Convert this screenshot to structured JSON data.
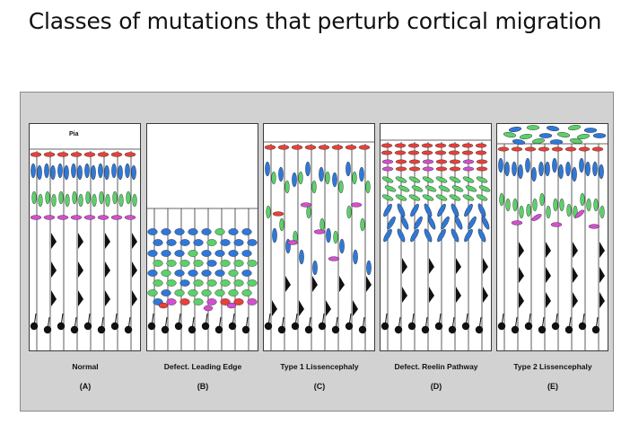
{
  "title": "Classes of mutations that perturb cortical migration",
  "pia_label": "Pia",
  "colors": {
    "red": "#e8403a",
    "blue": "#2f78d8",
    "green": "#5cd06a",
    "magenta": "#d44fcf",
    "black": "#111111"
  },
  "panels": [
    {
      "caption": "Normal",
      "letter": "(A)",
      "pattern": "normal"
    },
    {
      "caption": "Defect. Leading Edge",
      "letter": "(B)",
      "pattern": "leading-edge"
    },
    {
      "caption": "Type 1 Lissencephaly",
      "letter": "(C)",
      "pattern": "type1"
    },
    {
      "caption": "Defect. Reelin Pathway",
      "letter": "(D)",
      "pattern": "reelin"
    },
    {
      "caption": "Type 2 Lissencephaly",
      "letter": "(E)",
      "pattern": "type2"
    }
  ]
}
